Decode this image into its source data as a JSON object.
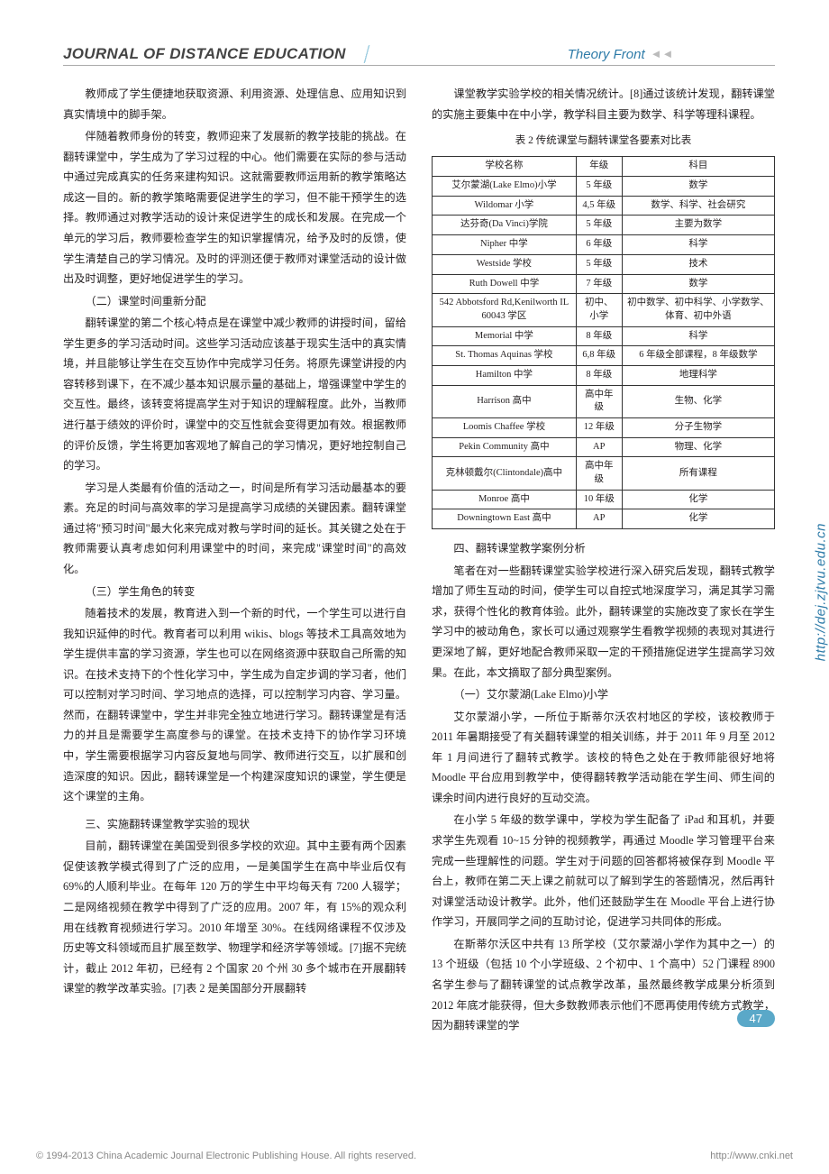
{
  "header": {
    "journal": "JOURNAL OF DISTANCE EDUCATION",
    "section": "Theory Front",
    "arrows": "◄◄"
  },
  "left": {
    "p1": "教师成了学生便捷地获取资源、利用资源、处理信息、应用知识到真实情境中的脚手架。",
    "p2": "伴随着教师身份的转变，教师迎来了发展新的教学技能的挑战。在翻转课堂中，学生成为了学习过程的中心。他们需要在实际的参与活动中通过完成真实的任务来建构知识。这就需要教师运用新的教学策略达成这一目的。新的教学策略需要促进学生的学习，但不能干预学生的选择。教师通过对教学活动的设计来促进学生的成长和发展。在完成一个单元的学习后，教师要检查学生的知识掌握情况，给予及时的反馈，使学生清楚自己的学习情况。及时的评测还便于教师对课堂活动的设计做出及时调整，更好地促进学生的学习。",
    "sub1": "（二）课堂时间重新分配",
    "p3": "翻转课堂的第二个核心特点是在课堂中减少教师的讲授时间，留给学生更多的学习活动时间。这些学习活动应该基于现实生活中的真实情境，并且能够让学生在交互协作中完成学习任务。将原先课堂讲授的内容转移到课下，在不减少基本知识展示量的基础上，增强课堂中学生的交互性。最终，该转变将提高学生对于知识的理解程度。此外，当教师进行基于绩效的评价时，课堂中的交互性就会变得更加有效。根据教师的评价反馈，学生将更加客观地了解自己的学习情况，更好地控制自己的学习。",
    "p4": "学习是人类最有价值的活动之一，时间是所有学习活动最基本的要素。充足的时间与高效率的学习是提高学习成绩的关键因素。翻转课堂通过将\"预习时间\"最大化来完成对教与学时间的延长。其关键之处在于教师需要认真考虑如何利用课堂中的时间，来完成\"课堂时间\"的高效化。",
    "sub2": "（三）学生角色的转变",
    "p5": "随着技术的发展，教育进入到一个新的时代，一个学生可以进行自我知识延伸的时代。教育者可以利用 wikis、blogs 等技术工具高效地为学生提供丰富的学习资源，学生也可以在网络资源中获取自己所需的知识。在技术支持下的个性化学习中，学生成为自定步调的学习者，他们可以控制对学习时间、学习地点的选择，可以控制学习内容、学习量。然而，在翻转课堂中，学生并非完全独立地进行学习。翻转课堂是有活力的并且是需要学生高度参与的课堂。在技术支持下的协作学习环境中，学生需要根据学习内容反复地与同学、教师进行交互，以扩展和创造深度的知识。因此，翻转课堂是一个构建深度知识的课堂，学生便是这个课堂的主角。",
    "sec2": "三、实施翻转课堂教学实验的现状",
    "p6": "目前，翻转课堂在美国受到很多学校的欢迎。其中主要有两个因素促使该教学模式得到了广泛的应用，一是美国学生在高中毕业后仅有 69%的人顺利毕业。在每年 120 万的学生中平均每天有 7200 人辍学；二是网络视频在教学中得到了广泛的应用。2007 年，有 15%的观众利用在线教育视频进行学习。2010 年增至 30%。在线网络课程不仅涉及历史等文科领域而且扩展至数学、物理学和经济学等领域。[7]据不完统计，截止 2012 年初，已经有 2 个国家 20 个州 30 多个城市在开展翻转课堂的教学改革实验。[7]表 2 是美国部分开展翻转"
  },
  "right": {
    "p1": "课堂教学实验学校的相关情况统计。[8]通过该统计发现，翻转课堂的实施主要集中在中小学，教学科目主要为数学、科学等理科课程。",
    "tableCaption": "表 2  传统课堂与翻转课堂各要素对比表",
    "table": {
      "headers": [
        "学校名称",
        "年级",
        "科目"
      ],
      "rows": [
        [
          "艾尔蒙湖(Lake Elmo)小学",
          "5 年级",
          "数学"
        ],
        [
          "Wildomar 小学",
          "4,5 年级",
          "数学、科学、社会研究"
        ],
        [
          "达芬奇(Da Vinci)学院",
          "5 年级",
          "主要为数学"
        ],
        [
          "Nipher 中学",
          "6 年级",
          "科学"
        ],
        [
          "Westside 学校",
          "5 年级",
          "技术"
        ],
        [
          "Ruth Dowell 中学",
          "7 年级",
          "数学"
        ],
        [
          "542 Abbotsford Rd,Kenilworth IL 60043 学区",
          "初中、小学",
          "初中数学、初中科学、小学数学、体育、初中外语"
        ],
        [
          "Memorial 中学",
          "8 年级",
          "科学"
        ],
        [
          "St. Thomas Aquinas 学校",
          "6,8 年级",
          "6 年级全部课程，8 年级数学"
        ],
        [
          "Hamilton 中学",
          "8 年级",
          "地理科学"
        ],
        [
          "Harrison 高中",
          "高中年级",
          "生物、化学"
        ],
        [
          "Loomis Chaffee 学校",
          "12 年级",
          "分子生物学"
        ],
        [
          "Pekin Community 高中",
          "AP",
          "物理、化学"
        ],
        [
          "克林顿戴尔(Clintondale)高中",
          "高中年级",
          "所有课程"
        ],
        [
          "Monroe 高中",
          "10 年级",
          "化学"
        ],
        [
          "Downingtown East 高中",
          "AP",
          "化学"
        ]
      ]
    },
    "sec3": "四、翻转课堂教学案例分析",
    "p2": "笔者在对一些翻转课堂实验学校进行深入研究后发现，翻转式教学增加了师生互动的时间，使学生可以自控式地深度学习，满足其学习需求，获得个性化的教育体验。此外，翻转课堂的实施改变了家长在学生学习中的被动角色，家长可以通过观察学生看教学视频的表现对其进行更深地了解，更好地配合教师采取一定的干预措施促进学生提高学习效果。在此，本文摘取了部分典型案例。",
    "sub3": "（一）艾尔蒙湖(Lake Elmo)小学",
    "p3": "艾尔蒙湖小学，一所位于斯蒂尔沃农村地区的学校，该校教师于 2011 年暑期接受了有关翻转课堂的相关训练，并于 2011 年 9 月至 2012 年 1 月间进行了翻转式教学。该校的特色之处在于教师能很好地将 Moodle 平台应用到教学中，使得翻转教学活动能在学生间、师生间的课余时间内进行良好的互动交流。",
    "p4": "在小学 5 年级的数学课中，学校为学生配备了 iPad 和耳机，并要求学生先观看 10~15 分钟的视频教学，再通过 Moodle 学习管理平台来完成一些理解性的问题。学生对于问题的回答都将被保存到 Moodle 平台上，教师在第二天上课之前就可以了解到学生的答题情况，然后再针对课堂活动设计教学。此外，他们还鼓励学生在 Moodle 平台上进行协作学习，开展同学之间的互助讨论，促进学习共同体的形成。",
    "p5": "在斯蒂尔沃区中共有 13 所学校（艾尔蒙湖小学作为其中之一）的 13 个班级（包括 10 个小学班级、2 个初中、1 个高中）52 门课程 8900 名学生参与了翻转课堂的试点教学改革，虽然最终教学成果分析须到 2012 年底才能获得，但大多数教师表示他们不愿再使用传统方式教学，因为翻转课堂的学"
  },
  "sideUrl": "http://dej.zjtvu.edu.cn",
  "pageNum": "47",
  "footer": {
    "left": "© 1994-2013 China Academic Journal Electronic Publishing House. All rights reserved.",
    "right": "http://www.cnki.net"
  }
}
